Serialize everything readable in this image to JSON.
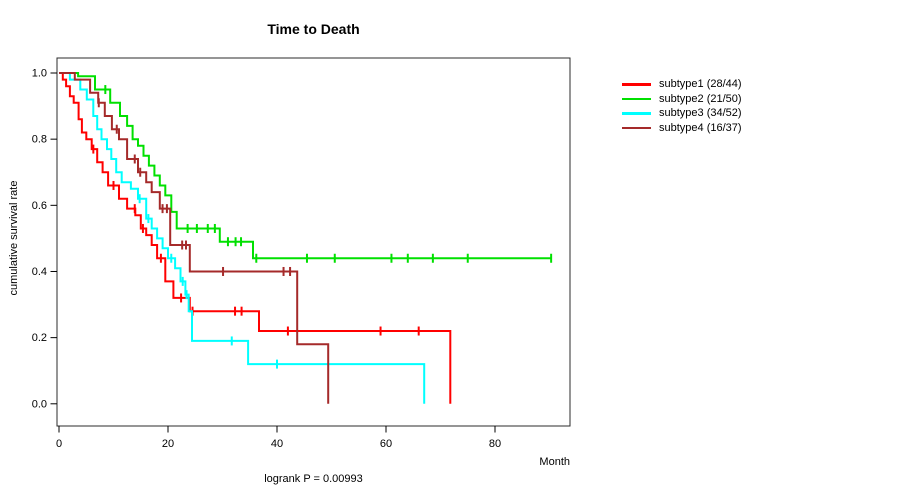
{
  "chart_data": {
    "type": "line",
    "chart_kind": "kaplan-meier-survival",
    "title": "Time to Death",
    "xlabel": "Month",
    "ylabel": "cumulative survival rate",
    "annotation": "logrank P = 0.00993",
    "xlim": [
      0,
      94
    ],
    "ylim": [
      0.0,
      1.0
    ],
    "xticks": [
      0,
      20,
      40,
      60,
      80
    ],
    "yticks": [
      0.0,
      0.2,
      0.4,
      0.6,
      0.8,
      1.0
    ],
    "ytick_labels": [
      "0.0",
      "0.2",
      "0.4",
      "0.6",
      "0.8",
      "1.0"
    ],
    "grid": false,
    "legend_position": "right-outside",
    "series": [
      {
        "name": "subtype1 (28/44)",
        "color": "#FF0000",
        "steps": [
          [
            0,
            1.0
          ],
          [
            0.7,
            0.98
          ],
          [
            1.3,
            0.96
          ],
          [
            2,
            0.93
          ],
          [
            2.7,
            0.91
          ],
          [
            3.6,
            0.86
          ],
          [
            4.2,
            0.82
          ],
          [
            5,
            0.8
          ],
          [
            6,
            0.77
          ],
          [
            7,
            0.73
          ],
          [
            8,
            0.7
          ],
          [
            9,
            0.66
          ],
          [
            11,
            0.62
          ],
          [
            12.5,
            0.59
          ],
          [
            14,
            0.57
          ],
          [
            15,
            0.53
          ],
          [
            16,
            0.51
          ],
          [
            17,
            0.48
          ],
          [
            18,
            0.44
          ],
          [
            19.5,
            0.37
          ],
          [
            21,
            0.32
          ],
          [
            24,
            0.28
          ],
          [
            36.7,
            0.22
          ],
          [
            71.8,
            0.0
          ]
        ],
        "censor_months": [
          6.3,
          10,
          13.9,
          15.4,
          18.7,
          22.4,
          24.5,
          32.3,
          33.5,
          42,
          59,
          66
        ]
      },
      {
        "name": "subtype2 (21/50)",
        "color": "#00E000",
        "steps": [
          [
            0,
            1.0
          ],
          [
            3.5,
            0.99
          ],
          [
            6.6,
            0.95
          ],
          [
            9.4,
            0.91
          ],
          [
            11.2,
            0.87
          ],
          [
            12.5,
            0.84
          ],
          [
            13.5,
            0.8
          ],
          [
            14.5,
            0.78
          ],
          [
            15.5,
            0.75
          ],
          [
            16.5,
            0.72
          ],
          [
            17.5,
            0.69
          ],
          [
            18.5,
            0.66
          ],
          [
            19.5,
            0.63
          ],
          [
            20.6,
            0.58
          ],
          [
            21.6,
            0.53
          ],
          [
            29.5,
            0.49
          ],
          [
            35.6,
            0.44
          ],
          [
            90.3,
            0.44
          ]
        ],
        "censor_months": [
          8.5,
          23.6,
          25.3,
          27.3,
          28.6,
          31,
          32.4,
          33.4,
          36.2,
          45.5,
          50.6,
          61,
          64,
          68.6,
          75,
          90.3
        ]
      },
      {
        "name": "subtype3 (34/52)",
        "color": "#00FFFF",
        "steps": [
          [
            0,
            1.0
          ],
          [
            2,
            0.98
          ],
          [
            3.9,
            0.95
          ],
          [
            5.1,
            0.92
          ],
          [
            6.3,
            0.87
          ],
          [
            7,
            0.83
          ],
          [
            7.8,
            0.8
          ],
          [
            8.8,
            0.77
          ],
          [
            9.6,
            0.74
          ],
          [
            10.5,
            0.7
          ],
          [
            11.5,
            0.67
          ],
          [
            13.2,
            0.65
          ],
          [
            14.5,
            0.62
          ],
          [
            16,
            0.56
          ],
          [
            17,
            0.53
          ],
          [
            18,
            0.5
          ],
          [
            19,
            0.47
          ],
          [
            20,
            0.44
          ],
          [
            21.3,
            0.41
          ],
          [
            22.3,
            0.37
          ],
          [
            23.2,
            0.33
          ],
          [
            23.8,
            0.28
          ],
          [
            24.4,
            0.19
          ],
          [
            34.7,
            0.12
          ],
          [
            67,
            0.0
          ]
        ],
        "censor_months": [
          14.8,
          16.4,
          20.6,
          22.7,
          23.4,
          31.7,
          40
        ]
      },
      {
        "name": "subtype4 (16/37)",
        "color": "#A52A2A",
        "steps": [
          [
            0,
            1.0
          ],
          [
            2.9,
            0.98
          ],
          [
            5.7,
            0.94
          ],
          [
            7.2,
            0.91
          ],
          [
            8.4,
            0.87
          ],
          [
            9.7,
            0.83
          ],
          [
            11,
            0.8
          ],
          [
            12.5,
            0.74
          ],
          [
            14.5,
            0.7
          ],
          [
            16,
            0.67
          ],
          [
            17,
            0.64
          ],
          [
            18.5,
            0.59
          ],
          [
            20.4,
            0.48
          ],
          [
            24,
            0.4
          ],
          [
            43.7,
            0.18
          ],
          [
            49.4,
            0.0
          ]
        ],
        "censor_months": [
          7.3,
          10.6,
          13.9,
          14.9,
          19,
          19.8,
          22.6,
          23.3,
          30.1,
          41.2,
          42.4
        ]
      }
    ]
  }
}
